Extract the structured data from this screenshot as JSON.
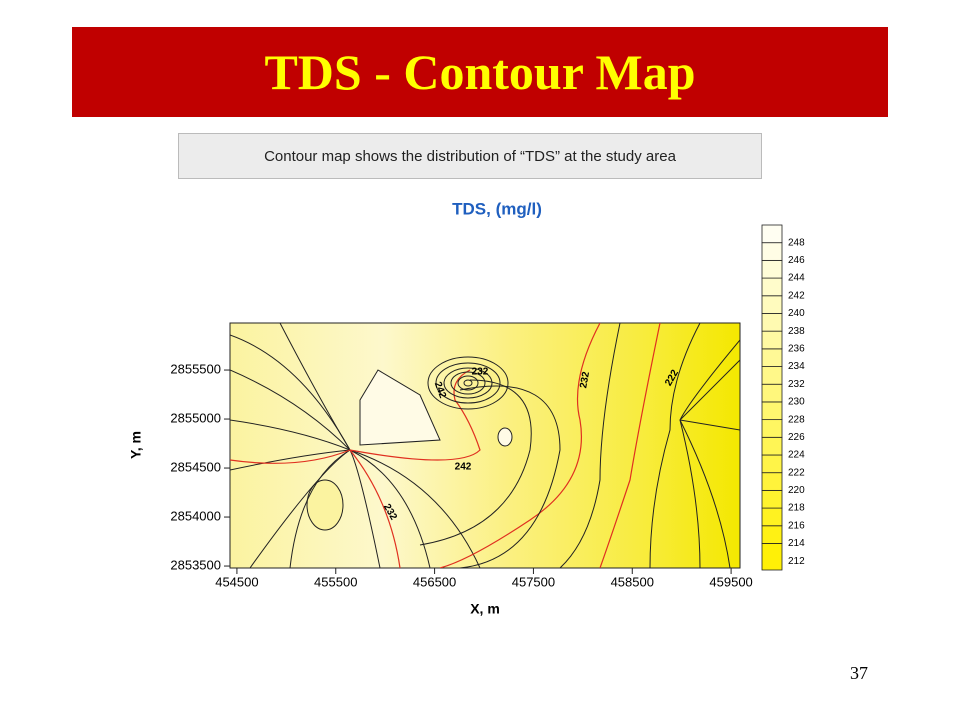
{
  "title": "TDS - Contour Map",
  "subtitle": "Contour map shows the distribution of “TDS” at the study area",
  "page_number": "37",
  "chart_data": {
    "type": "contour",
    "title": "TDS, (mg/l)",
    "x_label": "X, m",
    "y_label": "Y, m",
    "xlim": [
      454430,
      459590
    ],
    "xticks": [
      454500,
      455500,
      456500,
      457500,
      458500,
      459500
    ],
    "ylim": [
      2853480,
      2855980
    ],
    "yticks": [
      2853500,
      2854000,
      2854500,
      2855000,
      2855500
    ],
    "colorbar": {
      "lim": [
        211,
        250
      ],
      "ticks": [
        212,
        214,
        216,
        218,
        220,
        222,
        224,
        226,
        228,
        230,
        232,
        234,
        236,
        238,
        240,
        242,
        244,
        246,
        248
      ]
    },
    "contour_labels": [
      232,
      242,
      242,
      232,
      222,
      232
    ]
  }
}
